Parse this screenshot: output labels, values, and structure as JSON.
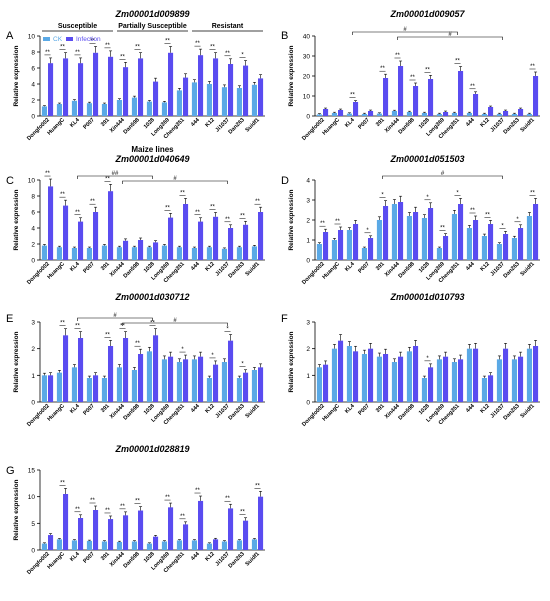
{
  "colors": {
    "ck": "#5aa9e6",
    "infection": "#5a4cf0"
  },
  "legend": [
    "CK",
    "Infection"
  ],
  "xlabel_shared": "Maize lines",
  "groups": [
    "Susceptible",
    "Partially Susceptible",
    "Resistant"
  ],
  "chart_data": [
    {
      "panel": "A",
      "type": "bar",
      "title": "Zm00001d009899",
      "ylabel": "Relative expression",
      "ylim": [
        0,
        10
      ],
      "yticks": [
        0,
        2,
        4,
        6,
        8,
        10
      ],
      "categories": [
        "Dongfo002",
        "HuangC",
        "KL4",
        "P007",
        "391",
        "Xin444",
        "Dan598",
        "1028",
        "Long369",
        "Cheng351",
        "444",
        "K12",
        "Ji1037",
        "Dan263",
        "Suidf1"
      ],
      "series": [
        {
          "name": "CK",
          "values": [
            1.2,
            1.5,
            1.9,
            1.6,
            1.5,
            2.0,
            2.3,
            1.8,
            1.7,
            3.2,
            4.2,
            4.0,
            3.6,
            3.5,
            3.9
          ]
        },
        {
          "name": "Infection",
          "values": [
            6.6,
            7.2,
            6.6,
            7.9,
            7.4,
            6.1,
            7.2,
            4.3,
            7.9,
            4.8,
            7.6,
            7.2,
            6.5,
            6.3,
            4.7
          ]
        }
      ],
      "sig": [
        "**",
        "**",
        "**",
        "**",
        "**",
        "**",
        "**",
        "",
        "**",
        "",
        "**",
        "**",
        "**",
        "*",
        ""
      ]
    },
    {
      "panel": "B",
      "type": "bar",
      "title": "Zm00001d009057",
      "ylabel": "Relative expression",
      "ylim": [
        0,
        40
      ],
      "yticks": [
        0,
        10,
        20,
        30,
        40
      ],
      "categories": [
        "Dongfo002",
        "HuangC",
        "KL4",
        "P007",
        "391",
        "Xin444",
        "Dan598",
        "1028",
        "Long369",
        "Cheng351",
        "444",
        "K12",
        "Ji1037",
        "Dan263",
        "Suidf1"
      ],
      "series": [
        {
          "name": "CK",
          "values": [
            0.8,
            1.5,
            1.2,
            1.0,
            1.2,
            2.5,
            2.0,
            1.5,
            1.0,
            1.5,
            1.5,
            1.0,
            1.0,
            1.0,
            1.0
          ]
        },
        {
          "name": "Infection",
          "values": [
            3.5,
            3.0,
            7.0,
            2.5,
            19.0,
            25.0,
            15.0,
            18.5,
            2.0,
            22.5,
            11.0,
            4.5,
            2.5,
            3.5,
            20.0
          ]
        }
      ],
      "sig": [
        "",
        "",
        "**",
        "",
        "**",
        "**",
        "**",
        "**",
        "",
        "**",
        "**",
        "",
        "",
        "",
        "**"
      ]
    },
    {
      "panel": "C",
      "type": "bar",
      "title": "Zm00001d040649",
      "ylabel": "Relative expression",
      "ylim": [
        0,
        10
      ],
      "yticks": [
        0,
        2,
        4,
        6,
        8,
        10
      ],
      "categories": [
        "Dongfo002",
        "HuangC",
        "KL4",
        "P007",
        "391",
        "Xin444",
        "Dan598",
        "1028",
        "Long369",
        "Cheng351",
        "444",
        "K12",
        "Ji1037",
        "Dan263",
        "Suidf1"
      ],
      "series": [
        {
          "name": "CK",
          "values": [
            1.8,
            1.6,
            1.5,
            1.5,
            1.8,
            1.6,
            1.6,
            1.6,
            1.8,
            1.6,
            1.5,
            1.6,
            1.4,
            1.6,
            1.7
          ]
        },
        {
          "name": "Infection",
          "values": [
            9.2,
            6.8,
            4.8,
            6.0,
            8.6,
            2.4,
            2.5,
            2.2,
            5.3,
            7.0,
            4.8,
            5.4,
            4.0,
            4.4,
            6.0
          ]
        }
      ],
      "sig": [
        "**",
        "**",
        "**",
        "**",
        "**",
        "",
        "",
        "",
        "**",
        "**",
        "**",
        "**",
        "**",
        "**",
        "**"
      ]
    },
    {
      "panel": "D",
      "type": "bar",
      "title": "Zm00001d051503",
      "ylabel": "Relative expression",
      "ylim": [
        0,
        4
      ],
      "yticks": [
        0,
        1,
        2,
        3,
        4
      ],
      "categories": [
        "Dongfo002",
        "HuangC",
        "KL4",
        "P007",
        "391",
        "Xin444",
        "Dan598",
        "1028",
        "Long369",
        "Cheng351",
        "444",
        "K12",
        "Ji1037",
        "Dan263",
        "Suidf1"
      ],
      "series": [
        {
          "name": "CK",
          "values": [
            0.8,
            1.0,
            1.5,
            0.6,
            2.0,
            2.8,
            2.2,
            2.1,
            0.6,
            2.3,
            1.6,
            1.2,
            0.8,
            1.1,
            2.2
          ]
        },
        {
          "name": "Infection",
          "values": [
            1.4,
            1.5,
            1.8,
            1.1,
            2.7,
            2.9,
            2.4,
            2.6,
            1.2,
            2.8,
            2.0,
            1.8,
            1.3,
            1.6,
            2.8
          ]
        }
      ],
      "sig": [
        "**",
        "**",
        "",
        "*",
        "*",
        "",
        "",
        "*",
        "**",
        "*",
        "**",
        "**",
        "*",
        "*",
        "**"
      ]
    },
    {
      "panel": "E",
      "type": "bar",
      "title": "Zm00001d030712",
      "ylabel": "Relative expression",
      "ylim": [
        0,
        3
      ],
      "yticks": [
        0,
        1,
        2,
        3
      ],
      "categories": [
        "Dongfo002",
        "HuangC",
        "KL4",
        "P007",
        "391",
        "Xin444",
        "Dan598",
        "1028",
        "Long369",
        "Cheng351",
        "444",
        "K12",
        "Ji1037",
        "Dan263",
        "Suidf1"
      ],
      "series": [
        {
          "name": "CK",
          "values": [
            1.0,
            1.1,
            1.3,
            0.9,
            0.9,
            1.3,
            1.2,
            1.9,
            1.6,
            1.5,
            1.6,
            0.9,
            1.5,
            0.9,
            1.2
          ]
        },
        {
          "name": "Infection",
          "values": [
            1.0,
            2.5,
            2.4,
            1.0,
            2.1,
            2.4,
            1.8,
            2.5,
            1.7,
            1.6,
            1.7,
            1.4,
            2.3,
            1.1,
            1.3
          ]
        }
      ],
      "sig": [
        "",
        "**",
        "**",
        "",
        "**",
        "**",
        "**",
        "**",
        "",
        "*",
        "",
        "*",
        "*",
        "*",
        ""
      ]
    },
    {
      "panel": "F",
      "type": "bar",
      "title": "Zm00001d010793",
      "ylabel": "Relative expression",
      "ylim": [
        0,
        3
      ],
      "yticks": [
        0,
        1,
        2,
        3
      ],
      "categories": [
        "Dongfo002",
        "HuangC",
        "KL4",
        "P007",
        "391",
        "Xin444",
        "Dan598",
        "1028",
        "Long369",
        "Cheng351",
        "444",
        "K12",
        "Ji1037",
        "Dan263",
        "Suidf1"
      ],
      "series": [
        {
          "name": "CK",
          "values": [
            1.3,
            2.0,
            2.1,
            1.8,
            1.7,
            1.5,
            1.9,
            0.9,
            1.6,
            1.5,
            2.0,
            0.9,
            1.6,
            1.6,
            2.0
          ]
        },
        {
          "name": "Infection",
          "values": [
            1.4,
            2.3,
            1.9,
            2.0,
            1.8,
            1.7,
            2.1,
            1.3,
            1.7,
            1.6,
            2.0,
            1.0,
            2.0,
            1.7,
            2.1
          ]
        }
      ],
      "sig": [
        "",
        "",
        "",
        "",
        "",
        "",
        "",
        "*",
        "",
        "",
        "",
        "",
        "",
        "",
        ""
      ]
    },
    {
      "panel": "G",
      "type": "bar",
      "title": "Zm00001d028819",
      "ylabel": "Relative expression",
      "ylim": [
        0,
        15
      ],
      "yticks": [
        0,
        5,
        10,
        15
      ],
      "categories": [
        "Dongfo002",
        "HuangC",
        "KL4",
        "P007",
        "391",
        "Xin444",
        "Dan598",
        "1028",
        "Long369",
        "Cheng351",
        "444",
        "K12",
        "Ji1037",
        "Dan263",
        "Suidf1"
      ],
      "series": [
        {
          "name": "CK",
          "values": [
            1.2,
            2.0,
            1.8,
            1.7,
            1.6,
            1.5,
            1.6,
            1.2,
            1.6,
            1.8,
            1.8,
            1.2,
            1.6,
            1.8,
            2.0
          ]
        },
        {
          "name": "Infection",
          "values": [
            2.8,
            10.5,
            6.0,
            7.5,
            5.8,
            6.5,
            7.4,
            2.5,
            8.0,
            4.8,
            9.2,
            2.0,
            7.8,
            5.5,
            10.0
          ]
        }
      ],
      "sig": [
        "",
        "**",
        "**",
        "**",
        "**",
        "**",
        "**",
        "",
        "**",
        "**",
        "**",
        "",
        "**",
        "**",
        "**"
      ]
    }
  ]
}
